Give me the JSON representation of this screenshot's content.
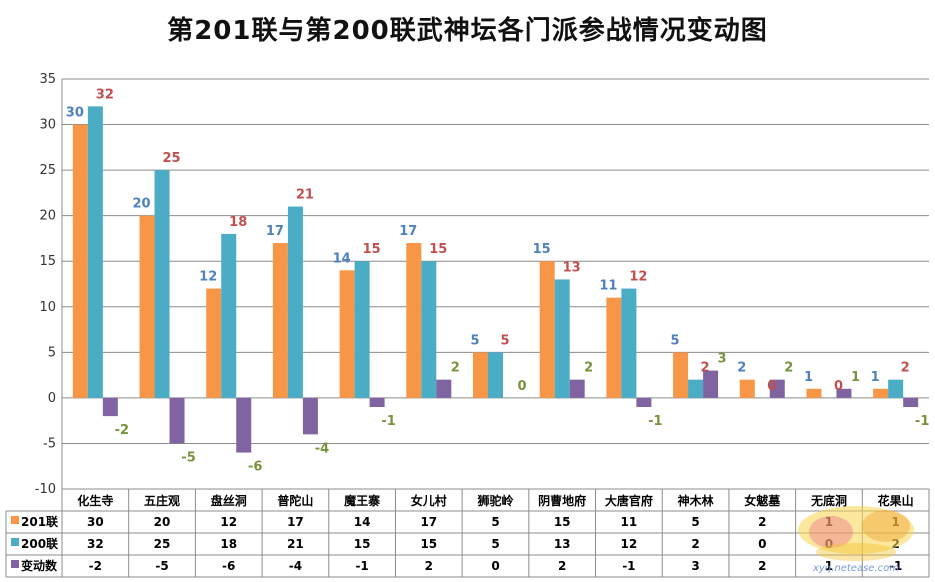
{
  "title": "第201联与第200联武神坛各门派参战情况变动图",
  "watermark_url": "xyq.netease.com",
  "chart_data": {
    "type": "bar",
    "title": "第201联与第200联武神坛各门派参战情况变动图",
    "categories": [
      "化生寺",
      "五庄观",
      "盘丝洞",
      "普陀山",
      "魔王寨",
      "女儿村",
      "狮驼岭",
      "阴曹地府",
      "大唐官府",
      "神木林",
      "女魃墓",
      "无底洞",
      "花果山"
    ],
    "series": [
      {
        "name": "201联",
        "color": "#f79646",
        "label_color": "#4f81bd",
        "values": [
          30,
          20,
          12,
          17,
          14,
          17,
          5,
          15,
          11,
          5,
          2,
          1,
          1
        ]
      },
      {
        "name": "200联",
        "color": "#4bacc6",
        "label_color": "#c0504d",
        "values": [
          32,
          25,
          18,
          21,
          15,
          15,
          5,
          13,
          12,
          2,
          0,
          0,
          2
        ]
      },
      {
        "name": "变动数",
        "color": "#8064a2",
        "label_color": "#77933c",
        "values": [
          -2,
          -5,
          -6,
          -4,
          -1,
          2,
          0,
          2,
          -1,
          3,
          2,
          1,
          -1
        ]
      }
    ],
    "ylim": [
      -10,
      35
    ],
    "yticks": [
      35,
      30,
      25,
      20,
      15,
      10,
      5,
      0,
      -5,
      -10
    ],
    "grid": true,
    "legend": "data-table"
  }
}
